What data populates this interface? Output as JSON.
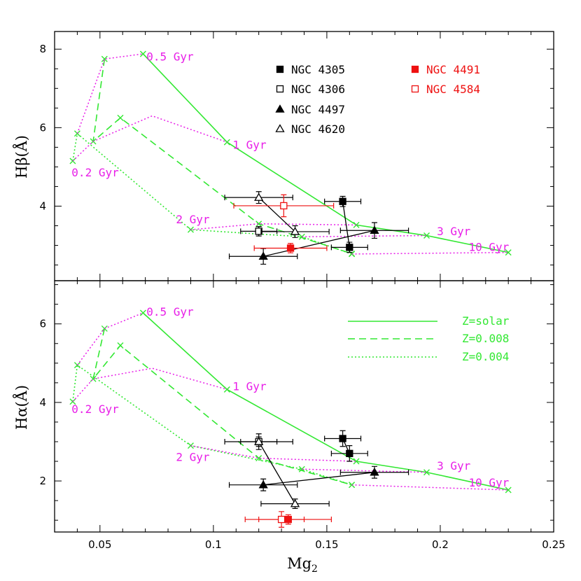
{
  "colors": {
    "model": "#33e833",
    "age": "#e81ee8",
    "black": "#000000",
    "red": "#ee1111"
  },
  "chart_data": {
    "type": "line",
    "xlabel": "Mg",
    "xlabel_sub": "2",
    "xlim": [
      0.03,
      0.25
    ],
    "xticks": [
      0.05,
      0.1,
      0.15,
      0.2,
      0.25
    ],
    "xtick_labels": [
      "0.05",
      "0.1",
      "0.15",
      "0.2",
      "0.25"
    ],
    "legend_objects": [
      {
        "name": "NGC 4305",
        "marker": "filled-square",
        "color": "black"
      },
      {
        "name": "NGC 4306",
        "marker": "open-square",
        "color": "black"
      },
      {
        "name": "NGC 4497",
        "marker": "filled-triangle",
        "color": "black"
      },
      {
        "name": "NGC 4620",
        "marker": "open-triangle",
        "color": "black"
      },
      {
        "name": "NGC 4491",
        "marker": "filled-square",
        "color": "red"
      },
      {
        "name": "NGC 4584",
        "marker": "open-square",
        "color": "red"
      }
    ],
    "legend_models": [
      {
        "name": "Z=solar",
        "style": "solid"
      },
      {
        "name": "Z=0.008",
        "style": "dashed"
      },
      {
        "name": "Z=0.004",
        "style": "dotted"
      }
    ],
    "panels": [
      {
        "id": "hbeta",
        "ylabel": "Hβ(Å)",
        "ylim": [
          2.1,
          8.45
        ],
        "yticks": [
          4,
          6,
          8
        ],
        "ytick_labels": [
          "4",
          "6",
          "8"
        ],
        "models": [
          {
            "name": "Z=solar",
            "style": "solid",
            "x": [
              0.069,
              0.106,
              0.163,
              0.194,
              0.23
            ],
            "y": [
              7.88,
              5.63,
              3.52,
              3.25,
              2.82
            ]
          },
          {
            "name": "Z=0.008",
            "style": "dashed",
            "x": [
              0.052,
              0.047,
              0.059,
              0.12,
              0.161
            ],
            "y": [
              7.75,
              5.65,
              6.25,
              3.55,
              2.79
            ]
          },
          {
            "name": "Z=0.004",
            "style": "dotted",
            "x": [
              0.038,
              0.04,
              0.09,
              0.139,
              0.161
            ],
            "y": [
              5.15,
              5.85,
              3.4,
              3.22,
              2.78
            ]
          }
        ],
        "isochrones": [
          {
            "age": "0.2 Gyr",
            "x": [
              0.038,
              0.047,
              0.073,
              0.106
            ],
            "y": [
              5.15,
              5.65,
              6.3,
              5.63
            ]
          },
          {
            "age": "0.5 Gyr",
            "x": [
              0.04,
              0.052,
              0.069
            ],
            "y": [
              5.85,
              7.75,
              7.88
            ]
          },
          {
            "age": "2 Gyr",
            "x": [
              0.09,
              0.12,
              0.163
            ],
            "y": [
              3.4,
              3.55,
              3.52
            ]
          },
          {
            "age": "3 Gyr",
            "x": [
              0.139,
              0.194
            ],
            "y": [
              3.22,
              3.25
            ]
          },
          {
            "age": "10 Gyr",
            "x": [
              0.161,
              0.23
            ],
            "y": [
              2.78,
              2.82
            ]
          }
        ],
        "age_labels": [
          {
            "text": "0.5 Gyr",
            "x": 0.0705,
            "y": 7.8
          },
          {
            "text": "1 Gyr",
            "x": 0.1085,
            "y": 5.55
          },
          {
            "text": "0.2 Gyr",
            "x": 0.0375,
            "y": 4.85
          },
          {
            "text": "2 Gyr",
            "x": 0.0835,
            "y": 3.65
          },
          {
            "text": "3 Gyr",
            "x": 0.1985,
            "y": 3.35
          },
          {
            "text": "10 Gyr",
            "x": 0.2125,
            "y": 2.95
          }
        ],
        "objects": [
          {
            "name": "NGC 4305",
            "marker": "filled-square",
            "color": "black",
            "x": [
              0.157,
              0.16
            ],
            "y": [
              4.12,
              2.95
            ],
            "xerr": 0.008,
            "yerr": 0.13
          },
          {
            "name": "NGC 4306",
            "marker": "open-square",
            "color": "black",
            "x": [
              0.12
            ],
            "y": [
              3.36
            ],
            "xerr": 0.008,
            "yerr": 0.12
          },
          {
            "name": "NGC 4497",
            "marker": "filled-triangle",
            "color": "black",
            "x": [
              0.122,
              0.171
            ],
            "y": [
              2.72,
              3.38
            ],
            "xerr": 0.015,
            "yerr": 0.2
          },
          {
            "name": "NGC 4620",
            "marker": "open-triangle",
            "color": "black",
            "x": [
              0.12,
              0.136
            ],
            "y": [
              4.22,
              3.35
            ],
            "xerr": 0.015,
            "yerr": 0.15
          },
          {
            "name": "NGC 4491",
            "marker": "filled-square",
            "color": "red",
            "x": [
              0.134
            ],
            "y": [
              2.93
            ],
            "xerr": 0.016,
            "yerr": 0.12
          },
          {
            "name": "NGC 4584",
            "marker": "open-square",
            "color": "red",
            "x": [
              0.131
            ],
            "y": [
              4.01
            ],
            "xerr": 0.022,
            "yerr": 0.28
          }
        ]
      },
      {
        "id": "halpha",
        "ylabel": "Hα(Å)",
        "ylim": [
          0.7,
          7.1
        ],
        "yticks": [
          2,
          4,
          6
        ],
        "ytick_labels": [
          "2",
          "4",
          "6"
        ],
        "models": [
          {
            "name": "Z=solar",
            "style": "solid",
            "x": [
              0.069,
              0.106,
              0.163,
              0.194,
              0.23
            ],
            "y": [
              6.28,
              4.33,
              2.5,
              2.22,
              1.77
            ]
          },
          {
            "name": "Z=0.008",
            "style": "dashed",
            "x": [
              0.052,
              0.047,
              0.059,
              0.12,
              0.161
            ],
            "y": [
              5.88,
              4.6,
              5.45,
              2.58,
              1.9
            ]
          },
          {
            "name": "Z=0.004",
            "style": "dotted",
            "x": [
              0.038,
              0.04,
              0.09,
              0.139,
              0.161
            ],
            "y": [
              4.02,
              4.95,
              2.9,
              2.3,
              1.9
            ]
          }
        ],
        "isochrones": [
          {
            "age": "0.2 Gyr",
            "x": [
              0.038,
              0.047,
              0.073,
              0.106
            ],
            "y": [
              4.02,
              4.6,
              4.87,
              4.33
            ]
          },
          {
            "age": "0.5 Gyr",
            "x": [
              0.04,
              0.052,
              0.069
            ],
            "y": [
              4.95,
              5.88,
              6.28
            ]
          },
          {
            "age": "2 Gyr",
            "x": [
              0.09,
              0.12,
              0.163
            ],
            "y": [
              2.9,
              2.58,
              2.5
            ]
          },
          {
            "age": "3 Gyr",
            "x": [
              0.139,
              0.194
            ],
            "y": [
              2.3,
              2.22
            ]
          },
          {
            "age": "10 Gyr",
            "x": [
              0.161,
              0.23
            ],
            "y": [
              1.9,
              1.77
            ]
          }
        ],
        "age_labels": [
          {
            "text": "0.5 Gyr",
            "x": 0.0705,
            "y": 6.3
          },
          {
            "text": "1 Gyr",
            "x": 0.1085,
            "y": 4.4
          },
          {
            "text": "0.2 Gyr",
            "x": 0.0375,
            "y": 3.82
          },
          {
            "text": "2 Gyr",
            "x": 0.0835,
            "y": 2.6
          },
          {
            "text": "3 Gyr",
            "x": 0.1985,
            "y": 2.38
          },
          {
            "text": "10 Gyr",
            "x": 0.2125,
            "y": 1.95
          }
        ],
        "objects": [
          {
            "name": "NGC 4305",
            "marker": "filled-square",
            "color": "black",
            "x": [
              0.157,
              0.16
            ],
            "y": [
              3.08,
              2.7
            ],
            "xerr": 0.008,
            "yerr": 0.2
          },
          {
            "name": "NGC 4306",
            "marker": "open-square",
            "color": "black",
            "x": [
              0.12
            ],
            "y": [
              3.0
            ],
            "xerr": 0.008,
            "yerr": 0.2
          },
          {
            "name": "NGC 4497",
            "marker": "filled-triangle",
            "color": "black",
            "x": [
              0.122,
              0.171
            ],
            "y": [
              1.9,
              2.22
            ],
            "xerr": 0.015,
            "yerr": 0.15
          },
          {
            "name": "NGC 4620",
            "marker": "open-triangle",
            "color": "black",
            "x": [
              0.12,
              0.136
            ],
            "y": [
              3.0,
              1.42
            ],
            "xerr": 0.015,
            "yerr": 0.12
          },
          {
            "name": "NGC 4491",
            "marker": "filled-square",
            "color": "red",
            "x": [
              0.133
            ],
            "y": [
              1.02
            ],
            "xerr": 0.019,
            "yerr": 0.12
          },
          {
            "name": "NGC 4584",
            "marker": "open-square",
            "color": "red",
            "x": [
              0.13
            ],
            "y": [
              1.02
            ],
            "xerr": 0.01,
            "yerr": 0.2
          }
        ]
      }
    ]
  }
}
